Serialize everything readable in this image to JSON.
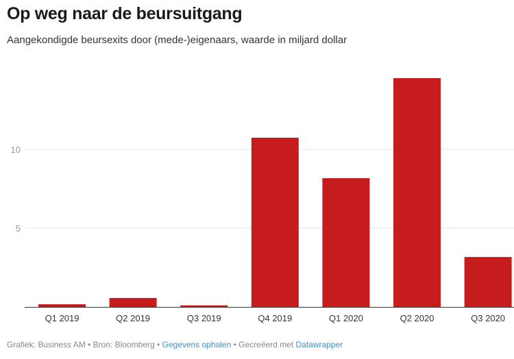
{
  "header": {
    "title": "Op weg naar de beursuitgang",
    "subtitle": "Aangekondigde beursexits door (mede-)eigenaars, waarde in miljard dollar"
  },
  "footer": {
    "chart_by": "Grafiek: Business AM",
    "separator": " • ",
    "source": "Bron: Bloomberg",
    "get_data": "Gegevens ophalen",
    "created_with": "Gecreëerd met",
    "tool": "Datawrapper"
  },
  "colors": {
    "bar": "#c71c1e",
    "grid": "#e6e6e6",
    "axis": "#333333",
    "link": "#3d90c6"
  },
  "chart_data": {
    "type": "bar",
    "title": "Op weg naar de beursuitgang",
    "subtitle": "Aangekondigde beursexits door (mede-)eigenaars, waarde in miljard dollar",
    "xlabel": "",
    "ylabel": "",
    "categories": [
      "Q1 2019",
      "Q2 2019",
      "Q3 2019",
      "Q4 2019",
      "Q1 2020",
      "Q2 2020",
      "Q3 2020"
    ],
    "values": [
      0.17,
      0.57,
      0.1,
      10.74,
      8.17,
      14.52,
      3.17
    ],
    "yticks": [
      5,
      10
    ],
    "ytick_labels": [
      "5",
      "10"
    ],
    "ylim": [
      0,
      14.52
    ],
    "grid": true
  }
}
